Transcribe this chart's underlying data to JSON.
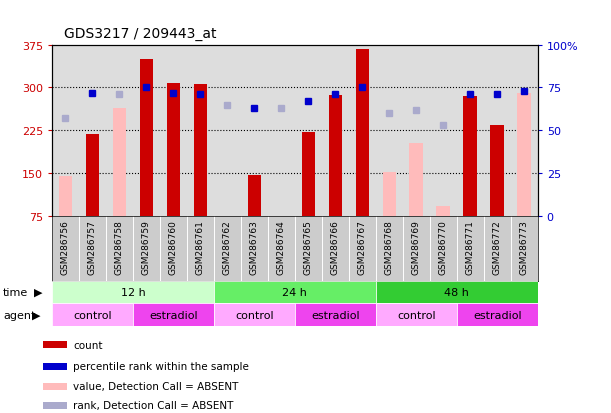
{
  "title": "GDS3217 / 209443_at",
  "samples": [
    "GSM286756",
    "GSM286757",
    "GSM286758",
    "GSM286759",
    "GSM286760",
    "GSM286761",
    "GSM286762",
    "GSM286763",
    "GSM286764",
    "GSM286765",
    "GSM286766",
    "GSM286767",
    "GSM286768",
    "GSM286769",
    "GSM286770",
    "GSM286771",
    "GSM286772",
    "GSM286773"
  ],
  "count_values": [
    null,
    218,
    null,
    350,
    308,
    306,
    null,
    147,
    null,
    222,
    287,
    368,
    null,
    null,
    null,
    285,
    234,
    null
  ],
  "count_absent": [
    145,
    null,
    265,
    null,
    null,
    null,
    null,
    null,
    null,
    null,
    null,
    null,
    152,
    203,
    93,
    null,
    null,
    290
  ],
  "rank_values": [
    null,
    72,
    null,
    75,
    72,
    71,
    null,
    63,
    null,
    67,
    71,
    75,
    null,
    null,
    null,
    71,
    71,
    73
  ],
  "rank_absent": [
    57,
    null,
    71,
    null,
    null,
    null,
    65,
    null,
    63,
    null,
    null,
    null,
    60,
    62,
    53,
    null,
    null,
    null
  ],
  "ylim_left": [
    75,
    375
  ],
  "ylim_right": [
    0,
    100
  ],
  "yticks_left": [
    75,
    150,
    225,
    300,
    375
  ],
  "yticks_right": [
    0,
    25,
    50,
    75,
    100
  ],
  "ytick_labels_right": [
    "0",
    "25",
    "50",
    "75",
    "100%"
  ],
  "ytick_labels_left": [
    "75",
    "150",
    "225",
    "300",
    "375"
  ],
  "color_count": "#cc0000",
  "color_count_absent": "#ffbbbb",
  "color_rank": "#0000cc",
  "color_rank_absent": "#aaaacc",
  "time_groups": [
    {
      "label": "12 h",
      "start": 0,
      "end": 6,
      "color": "#ccffcc"
    },
    {
      "label": "24 h",
      "start": 6,
      "end": 12,
      "color": "#66ee66"
    },
    {
      "label": "48 h",
      "start": 12,
      "end": 18,
      "color": "#33cc33"
    }
  ],
  "agent_groups": [
    {
      "label": "control",
      "start": 0,
      "end": 3,
      "color": "#ffaaff"
    },
    {
      "label": "estradiol",
      "start": 3,
      "end": 6,
      "color": "#ee44ee"
    },
    {
      "label": "control",
      "start": 6,
      "end": 9,
      "color": "#ffaaff"
    },
    {
      "label": "estradiol",
      "start": 9,
      "end": 12,
      "color": "#ee44ee"
    },
    {
      "label": "control",
      "start": 12,
      "end": 15,
      "color": "#ffaaff"
    },
    {
      "label": "estradiol",
      "start": 15,
      "end": 18,
      "color": "#ee44ee"
    }
  ],
  "legend_items": [
    {
      "label": "count",
      "color": "#cc0000"
    },
    {
      "label": "percentile rank within the sample",
      "color": "#0000cc"
    },
    {
      "label": "value, Detection Call = ABSENT",
      "color": "#ffbbbb"
    },
    {
      "label": "rank, Detection Call = ABSENT",
      "color": "#aaaacc"
    }
  ],
  "bar_width": 0.5,
  "marker_size": 5
}
